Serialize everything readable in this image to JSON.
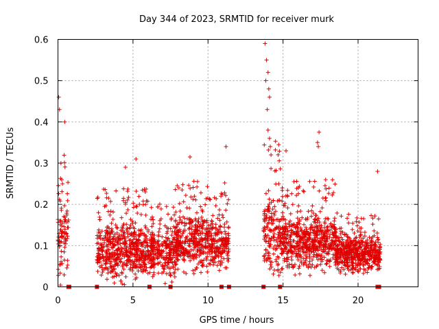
{
  "chart_data": {
    "type": "scatter",
    "title": "Day 344 of 2023, SRMTID for receiver murk",
    "xlabel": "GPS time / hours",
    "ylabel": "SRMTID / TECUs",
    "xlim": [
      0,
      24
    ],
    "ylim": [
      0,
      0.6
    ],
    "xticks": [
      0,
      5,
      10,
      15,
      20
    ],
    "xtick_labels": [
      "0",
      "5",
      "10",
      "15",
      "20"
    ],
    "yticks": [
      0,
      0.1,
      0.2,
      0.3,
      0.4,
      0.5,
      0.6
    ],
    "ytick_labels": [
      "0",
      "0.1",
      "0.2",
      "0.3",
      "0.4",
      "0.5",
      "0.6"
    ],
    "grid": true,
    "marker": "plus",
    "color": "#e00000",
    "clusters": [
      {
        "x_range": [
          0.0,
          0.7
        ],
        "mean": 0.12,
        "spread": 0.09,
        "count": 90
      },
      {
        "x_range": [
          2.6,
          6.4
        ],
        "mean": 0.09,
        "spread": 0.06,
        "count": 620
      },
      {
        "x_range": [
          6.2,
          8.0
        ],
        "mean": 0.08,
        "spread": 0.05,
        "count": 240
      },
      {
        "x_range": [
          7.8,
          11.4
        ],
        "mean": 0.11,
        "spread": 0.06,
        "count": 560
      },
      {
        "x_range": [
          13.7,
          15.0
        ],
        "mean": 0.13,
        "spread": 0.09,
        "count": 180
      },
      {
        "x_range": [
          14.9,
          18.6
        ],
        "mean": 0.11,
        "spread": 0.06,
        "count": 620
      },
      {
        "x_range": [
          18.5,
          21.5
        ],
        "mean": 0.08,
        "spread": 0.04,
        "count": 520
      }
    ],
    "highlights": [
      {
        "x": 0.05,
        "y": 0.46
      },
      {
        "x": 0.1,
        "y": 0.43
      },
      {
        "x": 0.45,
        "y": 0.4
      },
      {
        "x": 0.2,
        "y": 0.3
      },
      {
        "x": 5.2,
        "y": 0.31
      },
      {
        "x": 8.8,
        "y": 0.315
      },
      {
        "x": 11.2,
        "y": 0.34
      },
      {
        "x": 13.8,
        "y": 0.59
      },
      {
        "x": 13.9,
        "y": 0.55
      },
      {
        "x": 14.0,
        "y": 0.52
      },
      {
        "x": 13.85,
        "y": 0.5
      },
      {
        "x": 14.05,
        "y": 0.48
      },
      {
        "x": 14.1,
        "y": 0.46
      },
      {
        "x": 13.95,
        "y": 0.43
      },
      {
        "x": 14.0,
        "y": 0.38
      },
      {
        "x": 14.1,
        "y": 0.36
      },
      {
        "x": 14.15,
        "y": 0.34
      },
      {
        "x": 14.2,
        "y": 0.32
      },
      {
        "x": 17.4,
        "y": 0.375
      },
      {
        "x": 17.3,
        "y": 0.35
      },
      {
        "x": 17.35,
        "y": 0.34
      },
      {
        "x": 15.2,
        "y": 0.33
      },
      {
        "x": 4.5,
        "y": 0.29
      },
      {
        "x": 21.3,
        "y": 0.28
      },
      {
        "x": 2.7,
        "y": 0.18
      },
      {
        "x": 0.3,
        "y": 0.25
      },
      {
        "x": 0.25,
        "y": 0.26
      }
    ],
    "zero_markers": [
      0.7,
      0.75,
      2.6,
      6.1,
      7.5,
      10.9,
      11.4,
      13.7,
      14.8,
      21.3,
      21.4
    ]
  }
}
